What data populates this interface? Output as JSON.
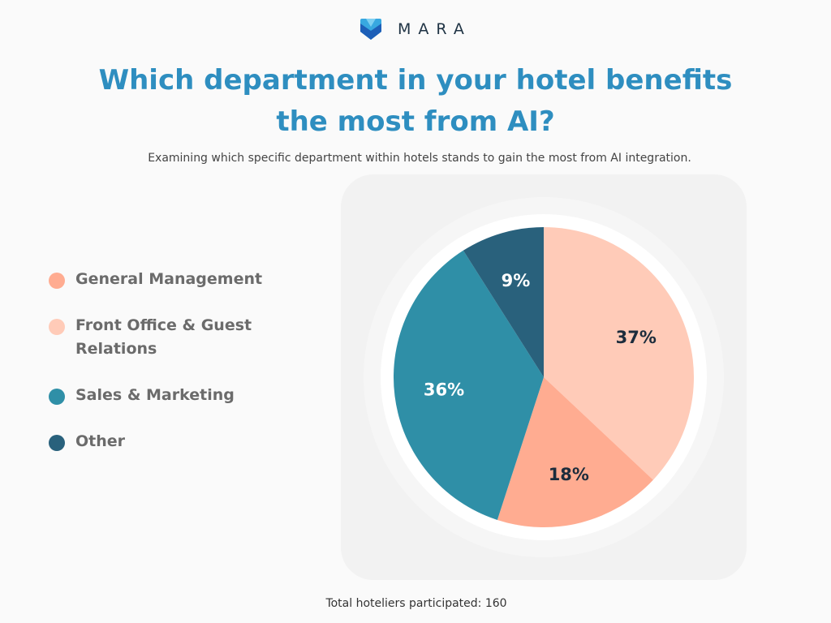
{
  "brand": {
    "name": "MARA",
    "icon": "mara-logo-icon"
  },
  "title_line1": "Which department in your hotel benefits",
  "title_line2": "the most from AI?",
  "subtitle": "Examining which specific department within hotels stands to gain the most from AI integration.",
  "footer": "Total hoteliers participated: 160",
  "colors": {
    "title": "#2e8ec0",
    "general_management": "#ffac91",
    "front_office": "#ffcbb8",
    "sales_marketing": "#2f8fa7",
    "other": "#29617c"
  },
  "chart_data": {
    "type": "pie",
    "title": "Which department in your hotel benefits the most from AI?",
    "legend_placement": "left",
    "slices": [
      {
        "name": "Front Office & Guest Relations",
        "value": 37,
        "label": "37%",
        "color": "#ffcbb8",
        "label_color": "#1c2c3c"
      },
      {
        "name": "General Management",
        "value": 18,
        "label": "18%",
        "color": "#ffac91",
        "label_color": "#1c2c3c"
      },
      {
        "name": "Sales & Marketing",
        "value": 36,
        "label": "36%",
        "color": "#2f8fa7",
        "label_color": "#ffffff"
      },
      {
        "name": "Other",
        "value": 9,
        "label": "9%",
        "color": "#29617c",
        "label_color": "#ffffff"
      }
    ],
    "legend": [
      {
        "name": "General Management",
        "color": "#ffac91"
      },
      {
        "name": "Front Office & Guest Relations",
        "color": "#ffcbb8"
      },
      {
        "name": "Sales & Marketing",
        "color": "#2f8fa7"
      },
      {
        "name": "Other",
        "color": "#29617c"
      }
    ]
  }
}
